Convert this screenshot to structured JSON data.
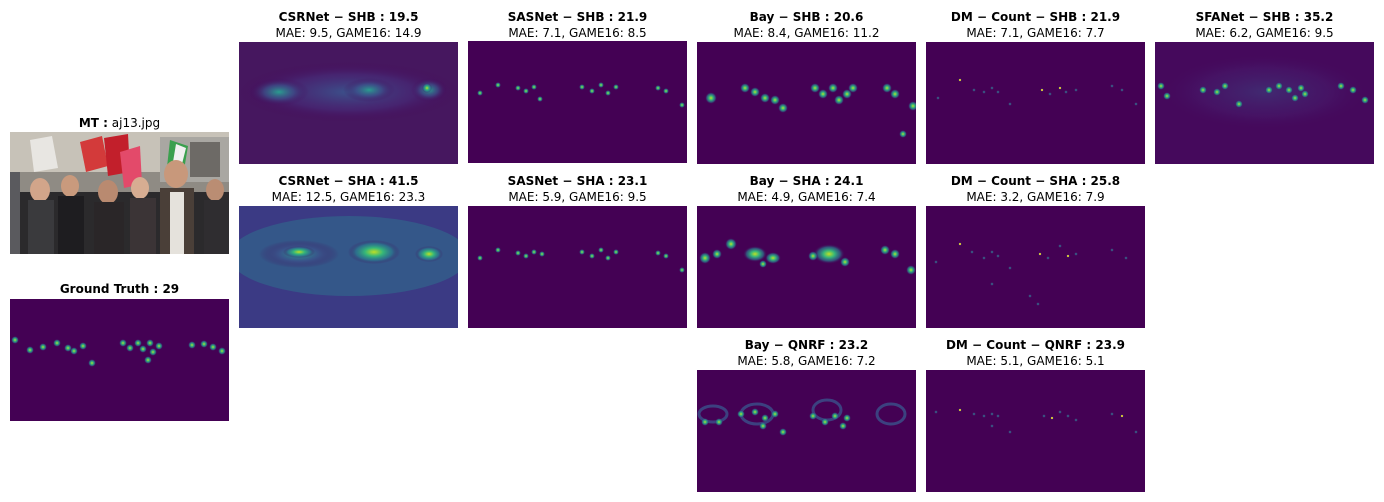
{
  "input": {
    "title_bold": "MT :",
    "title_rest": " aj13.jpg"
  },
  "ground_truth": {
    "title": "Ground Truth : 29"
  },
  "panels": [
    {
      "title": "CSRNet − SHB : 19.5",
      "metrics": "MAE: 9.5, GAME16: 14.9"
    },
    {
      "title": "SASNet − SHB : 21.9",
      "metrics": "MAE: 7.1, GAME16: 8.5"
    },
    {
      "title": "Bay − SHB : 20.6",
      "metrics": "MAE: 8.4, GAME16: 11.2"
    },
    {
      "title": "DM − Count − SHB : 21.9",
      "metrics": "MAE: 7.1, GAME16: 7.7"
    },
    {
      "title": "SFANet − SHB : 35.2",
      "metrics": "MAE: 6.2, GAME16: 9.5"
    },
    {
      "title": "CSRNet − SHA : 41.5",
      "metrics": "MAE: 12.5, GAME16: 23.3"
    },
    {
      "title": "SASNet − SHA : 23.1",
      "metrics": "MAE: 5.9, GAME16: 9.5"
    },
    {
      "title": "Bay − SHA : 24.1",
      "metrics": "MAE: 4.9, GAME16: 7.4"
    },
    {
      "title": "DM − Count − SHA : 25.8",
      "metrics": "MAE: 3.2, GAME16: 7.9"
    },
    {
      "title": "Bay − QNRF : 23.2",
      "metrics": "MAE: 5.8, GAME16: 7.2"
    },
    {
      "title": "DM − Count − QNRF : 23.9",
      "metrics": "MAE: 5.1, GAME16: 5.1"
    }
  ],
  "colors": {
    "background_dark": "#440154",
    "mid": "#21918c",
    "bright": "#fde725"
  }
}
